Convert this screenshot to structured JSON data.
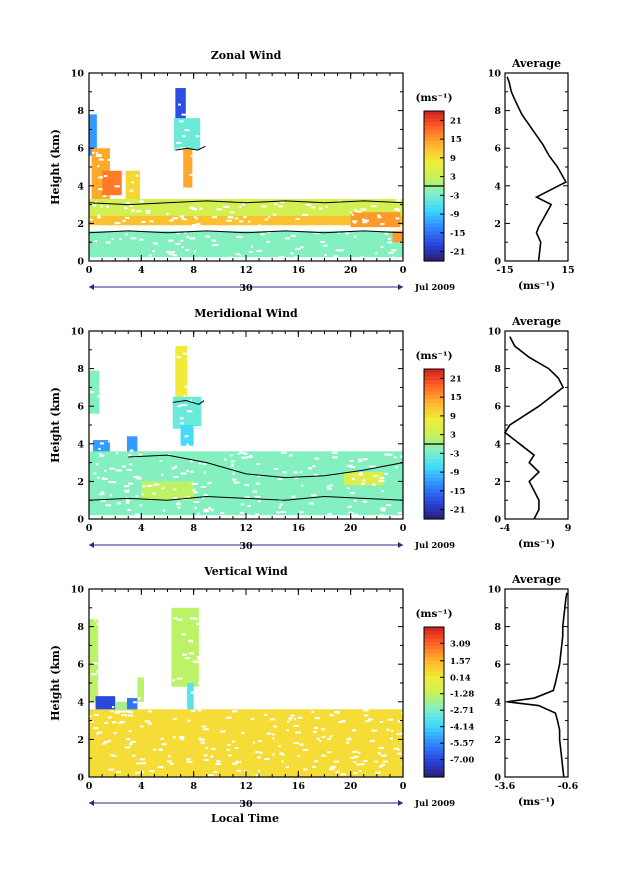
{
  "figure": {
    "xlabel": "Local Time",
    "date_label": "Jul 2009",
    "day_label": "30",
    "avg_title": "Average",
    "units": "(ms⁻¹)"
  },
  "chart_data": [
    {
      "type": "heatmap",
      "title": "Zonal Wind",
      "ylabel": "Height (km)",
      "xlim": [
        0,
        24
      ],
      "xticks": [
        "0",
        "4",
        "8",
        "12",
        "16",
        "20",
        "0"
      ],
      "xtick_values": [
        0,
        4,
        8,
        12,
        16,
        20,
        24
      ],
      "ylim": [
        0,
        10
      ],
      "yticks": [
        0,
        2,
        4,
        6,
        8,
        10
      ],
      "colorbar": {
        "label": "(ms⁻¹)",
        "range": [
          -24,
          24
        ],
        "ticks": [
          "21",
          "15",
          "9",
          "3",
          "-3",
          "-9",
          "-15",
          "-21"
        ],
        "tick_values": [
          21,
          15,
          9,
          3,
          -3,
          -9,
          -15,
          -21
        ],
        "zero_line": 0
      },
      "regions": [
        {
          "x": [
            0,
            0.6
          ],
          "y": [
            5.6,
            7.8
          ],
          "value": -12
        },
        {
          "x": [
            0.2,
            1.6
          ],
          "y": [
            3.0,
            6.0
          ],
          "value": 14
        },
        {
          "x": [
            1.0,
            2.5
          ],
          "y": [
            3.5,
            4.8
          ],
          "value": 17
        },
        {
          "x": [
            2.8,
            3.9
          ],
          "y": [
            2.2,
            4.8
          ],
          "value": 10
        },
        {
          "x": [
            6.6,
            7.4
          ],
          "y": [
            6.5,
            9.2
          ],
          "value": -18
        },
        {
          "x": [
            6.5,
            8.5
          ],
          "y": [
            5.9,
            7.6
          ],
          "value": -4
        },
        {
          "x": [
            7.2,
            7.9
          ],
          "y": [
            3.9,
            6.0
          ],
          "value": 14
        },
        {
          "x": [
            0.0,
            24.0
          ],
          "y": [
            2.3,
            3.3
          ],
          "value": 4
        },
        {
          "x": [
            0.0,
            24.0
          ],
          "y": [
            1.9,
            2.4
          ],
          "value": 12
        },
        {
          "x": [
            0.0,
            24.0
          ],
          "y": [
            0.2,
            1.6
          ],
          "value": -2
        },
        {
          "x": [
            20.0,
            23.8
          ],
          "y": [
            1.8,
            2.6
          ],
          "value": 15
        },
        {
          "x": [
            23.2,
            24.0
          ],
          "y": [
            1.0,
            1.6
          ],
          "value": 15
        }
      ],
      "contours": [
        {
          "x": [
            0,
            3,
            6,
            9,
            12,
            15,
            18,
            21,
            24
          ],
          "y": [
            3.1,
            3.0,
            3.1,
            3.2,
            3.1,
            3.2,
            3.1,
            3.2,
            3.1
          ]
        },
        {
          "x": [
            0,
            3,
            6,
            9,
            12,
            15,
            18,
            21,
            24
          ],
          "y": [
            1.5,
            1.6,
            1.5,
            1.6,
            1.5,
            1.6,
            1.5,
            1.6,
            1.5
          ]
        },
        {
          "x": [
            6.6,
            7.5,
            8.3,
            8.9
          ],
          "y": [
            5.9,
            6.0,
            5.9,
            6.1
          ]
        }
      ],
      "average_profile": {
        "xlim": [
          -15,
          15
        ],
        "xticks": [
          "-15",
          "15"
        ],
        "xtick_values": [
          -15,
          15
        ],
        "ylim": [
          0,
          10
        ],
        "yticks": [
          0,
          2,
          4,
          6,
          8,
          10
        ],
        "height": [
          0,
          0.5,
          1.0,
          1.5,
          1.8,
          2.2,
          2.6,
          3.0,
          3.4,
          3.8,
          4.2,
          4.6,
          5.0,
          5.6,
          6.2,
          7.0,
          7.8,
          8.5,
          9.0,
          9.5,
          9.8
        ],
        "wind": [
          1,
          1.5,
          2,
          0,
          1,
          3,
          5,
          7,
          0,
          7,
          14,
          12,
          10,
          6,
          3,
          -2,
          -7,
          -10,
          -12,
          -13,
          -14
        ]
      }
    },
    {
      "type": "heatmap",
      "title": "Meridional Wind",
      "ylabel": "Height (km)",
      "xlim": [
        0,
        24
      ],
      "xticks": [
        "0",
        "4",
        "8",
        "12",
        "16",
        "20",
        "0"
      ],
      "xtick_values": [
        0,
        4,
        8,
        12,
        16,
        20,
        24
      ],
      "ylim": [
        0,
        10
      ],
      "yticks": [
        0,
        2,
        4,
        6,
        8,
        10
      ],
      "colorbar": {
        "label": "(ms⁻¹)",
        "range": [
          -24,
          24
        ],
        "ticks": [
          "21",
          "15",
          "9",
          "3",
          "-3",
          "-9",
          "-15",
          "-21"
        ],
        "tick_values": [
          21,
          15,
          9,
          3,
          -3,
          -9,
          -15,
          -21
        ],
        "zero_line": 0
      },
      "regions": [
        {
          "x": [
            0,
            0.8
          ],
          "y": [
            5.6,
            7.9
          ],
          "value": -2
        },
        {
          "x": [
            0.3,
            1.6
          ],
          "y": [
            2.2,
            4.2
          ],
          "value": -12
        },
        {
          "x": [
            2.9,
            3.7
          ],
          "y": [
            2.0,
            4.4
          ],
          "value": -12
        },
        {
          "x": [
            6.6,
            7.5
          ],
          "y": [
            5.6,
            9.2
          ],
          "value": 8
        },
        {
          "x": [
            6.4,
            8.6
          ],
          "y": [
            4.8,
            6.5
          ],
          "value": -4
        },
        {
          "x": [
            7.0,
            8.0
          ],
          "y": [
            3.9,
            5.0
          ],
          "value": -7
        },
        {
          "x": [
            0.0,
            24.0
          ],
          "y": [
            0.2,
            3.6
          ],
          "value": -2
        },
        {
          "x": [
            19.5,
            22.5
          ],
          "y": [
            1.8,
            2.5
          ],
          "value": 5
        },
        {
          "x": [
            4.0,
            8.0
          ],
          "y": [
            1.0,
            2.0
          ],
          "value": 2
        }
      ],
      "contours": [
        {
          "x": [
            3,
            6,
            9,
            12,
            15,
            18,
            21,
            24
          ],
          "y": [
            3.3,
            3.4,
            3.0,
            2.4,
            2.2,
            2.3,
            2.6,
            3.0
          ]
        },
        {
          "x": [
            0,
            3,
            6,
            9,
            12,
            15,
            18,
            21,
            24
          ],
          "y": [
            1.0,
            1.1,
            1.0,
            1.2,
            1.1,
            1.0,
            1.2,
            1.1,
            1.0
          ]
        },
        {
          "x": [
            6.4,
            7.4,
            8.4,
            8.8
          ],
          "y": [
            6.2,
            6.3,
            6.1,
            6.3
          ]
        }
      ],
      "average_profile": {
        "xlim": [
          -4,
          9
        ],
        "xticks": [
          "-4",
          "9"
        ],
        "xtick_values": [
          -4,
          9
        ],
        "ylim": [
          0,
          10
        ],
        "yticks": [
          0,
          2,
          4,
          6,
          8,
          10
        ],
        "height": [
          0,
          0.5,
          1.0,
          1.5,
          2.0,
          2.5,
          3.0,
          3.4,
          3.8,
          4.2,
          4.6,
          5.0,
          5.5,
          6.0,
          6.6,
          7.0,
          7.5,
          8.0,
          8.6,
          9.2,
          9.7
        ],
        "wind": [
          2,
          3,
          3,
          2,
          1,
          3,
          1,
          2,
          0,
          -2,
          -4,
          -3,
          0,
          3,
          6,
          8,
          7,
          5,
          1,
          -2,
          -3
        ]
      }
    },
    {
      "type": "heatmap",
      "title": "Vertical Wind",
      "ylabel": "Height (km)",
      "xlim": [
        0,
        24
      ],
      "xticks": [
        "0",
        "4",
        "8",
        "12",
        "16",
        "20",
        "0"
      ],
      "xtick_values": [
        0,
        4,
        8,
        12,
        16,
        20,
        24
      ],
      "ylim": [
        0,
        10
      ],
      "yticks": [
        0,
        2,
        4,
        6,
        8,
        10
      ],
      "colorbar": {
        "label": "(ms⁻¹)",
        "range": [
          -8.5,
          4.5
        ],
        "ticks": [
          "3.09",
          "1.57",
          "0.14",
          "-1.28",
          "-2.71",
          "-4.14",
          "-5.57",
          "-7.00"
        ],
        "tick_values": [
          3.09,
          1.57,
          0.14,
          -1.28,
          -2.71,
          -4.14,
          -5.57,
          -7.0
        ]
      },
      "regions": [
        {
          "x": [
            0,
            0.7
          ],
          "y": [
            4.0,
            8.4
          ],
          "value": -1.5
        },
        {
          "x": [
            0.5,
            2.0
          ],
          "y": [
            1.0,
            4.3
          ],
          "value": -7.0
        },
        {
          "x": [
            2.0,
            2.9
          ],
          "y": [
            1.0,
            4.0
          ],
          "value": -2.0
        },
        {
          "x": [
            2.9,
            3.7
          ],
          "y": [
            1.0,
            4.2
          ],
          "value": -6.0
        },
        {
          "x": [
            3.7,
            4.2
          ],
          "y": [
            4.0,
            5.3
          ],
          "value": -1.5
        },
        {
          "x": [
            6.3,
            8.4
          ],
          "y": [
            4.8,
            9.0
          ],
          "value": -1.5
        },
        {
          "x": [
            7.5,
            8.0
          ],
          "y": [
            3.6,
            5.0
          ],
          "value": -3.5
        },
        {
          "x": [
            0.0,
            24.0
          ],
          "y": [
            0.0,
            3.6
          ],
          "value": 0.5
        }
      ],
      "contours": [],
      "average_profile": {
        "xlim": [
          -3.6,
          -0.6
        ],
        "xticks": [
          "-3.6",
          "-0.6"
        ],
        "xtick_values": [
          -3.6,
          -0.6
        ],
        "ylim": [
          0,
          10
        ],
        "yticks": [
          0,
          2,
          4,
          6,
          8,
          10
        ],
        "height": [
          0,
          0.5,
          1.0,
          1.5,
          2.0,
          2.5,
          3.0,
          3.4,
          3.8,
          4.0,
          4.2,
          4.6,
          5.0,
          5.5,
          6.0,
          6.5,
          7.0,
          7.5,
          8.0,
          8.5,
          9.0,
          9.5,
          9.8
        ],
        "wind": [
          -0.8,
          -0.85,
          -0.9,
          -0.95,
          -1.0,
          -1.0,
          -1.1,
          -1.2,
          -2.0,
          -3.5,
          -2.2,
          -1.3,
          -1.2,
          -1.1,
          -1.0,
          -0.95,
          -0.9,
          -0.85,
          -0.85,
          -0.8,
          -0.75,
          -0.7,
          -0.65
        ]
      }
    }
  ]
}
